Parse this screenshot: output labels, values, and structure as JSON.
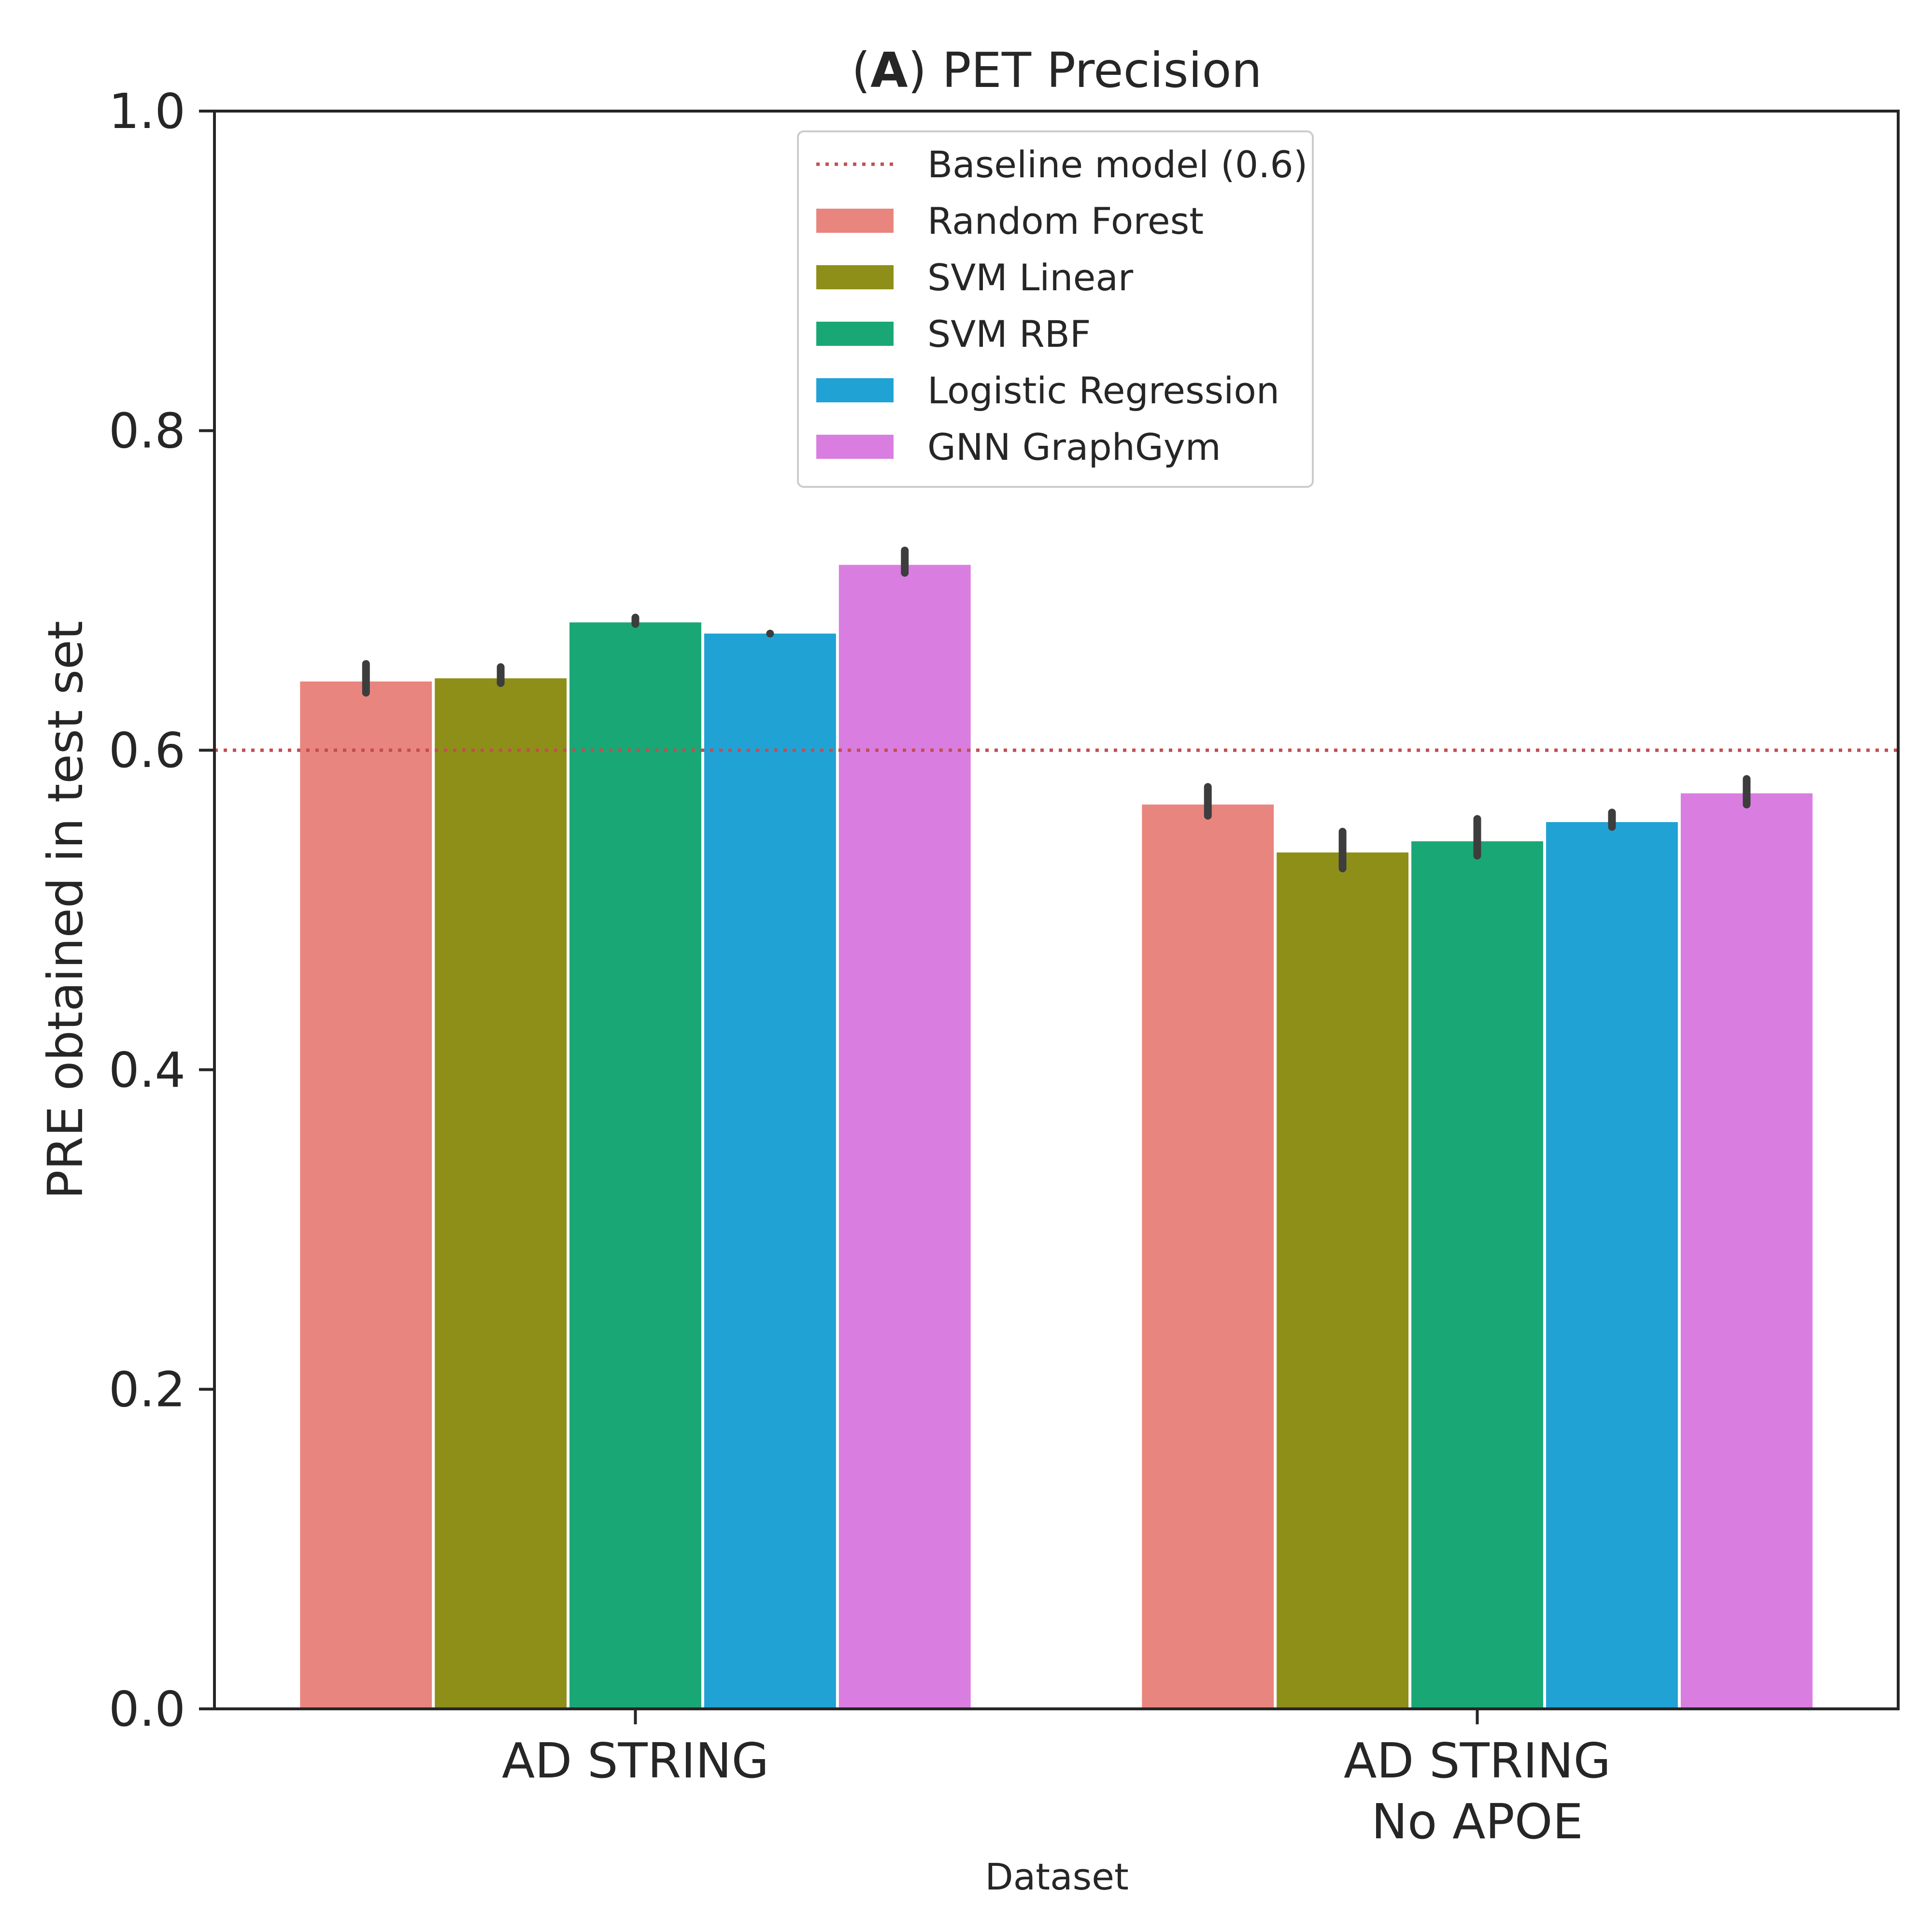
{
  "chart_data": {
    "type": "bar",
    "title_prefix_open": "(",
    "title_panel": "A",
    "title_rest": ") PET Precision",
    "xlabel": "Dataset",
    "ylabel": "PRE obtained in test set",
    "ylim": [
      0,
      1.0
    ],
    "yticks": [
      "0.0",
      "0.2",
      "0.4",
      "0.6",
      "0.8",
      "1.0"
    ],
    "categories": [
      [
        "AD STRING"
      ],
      [
        "AD STRING",
        "No APOE"
      ]
    ],
    "baseline": {
      "label": "Baseline model (0.6)",
      "value": 0.6,
      "color": "#c44e52"
    },
    "series": [
      {
        "name": "Random Forest",
        "color": "#e8857e",
        "values": [
          0.643,
          0.566
        ],
        "err_low": [
          0.636,
          0.559
        ],
        "err_high": [
          0.654,
          0.577
        ]
      },
      {
        "name": "SVM Linear",
        "color": "#8e8f18",
        "values": [
          0.645,
          0.536
        ],
        "err_low": [
          0.642,
          0.526
        ],
        "err_high": [
          0.652,
          0.549
        ]
      },
      {
        "name": "SVM RBF",
        "color": "#1aa776",
        "values": [
          0.68,
          0.543
        ],
        "err_low": [
          0.679,
          0.534
        ],
        "err_high": [
          0.683,
          0.557
        ]
      },
      {
        "name": "Logistic Regression",
        "color": "#20a2d5",
        "values": [
          0.673,
          0.555
        ],
        "err_low": [
          0.673,
          0.552
        ],
        "err_high": [
          0.673,
          0.561
        ]
      },
      {
        "name": "GNN GraphGym",
        "color": "#d97ee0",
        "values": [
          0.716,
          0.573
        ],
        "err_low": [
          0.711,
          0.566
        ],
        "err_high": [
          0.725,
          0.582
        ]
      }
    ],
    "legend_position": "top-center",
    "grid": false
  }
}
